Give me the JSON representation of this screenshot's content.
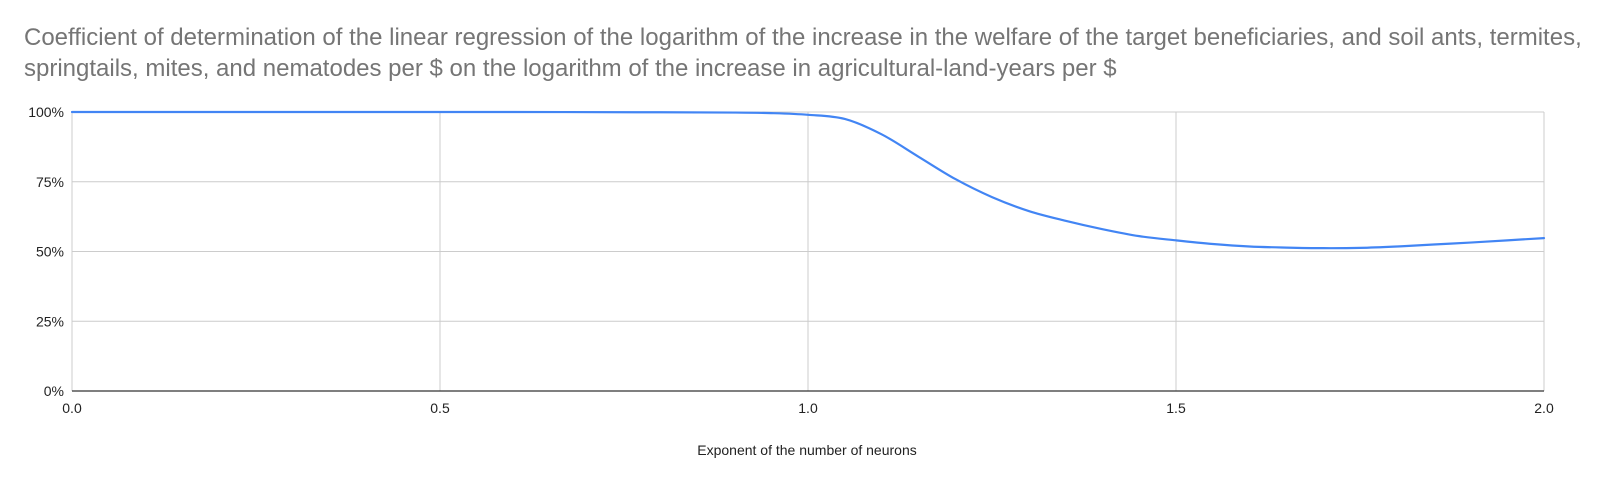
{
  "chart_data": {
    "type": "line",
    "title": "Coefficient of determination of the linear regression of the logarithm of the increase in the welfare of the target beneficiaries, and soil ants, termites, springtails, mites, and nematodes per $ on the logarithm of the increase in agricultural-land-years per $",
    "xlabel": "Exponent of the number of neurons",
    "ylabel": "",
    "xlim": [
      0,
      2
    ],
    "ylim": [
      0,
      100
    ],
    "x_ticks": [
      "0.0",
      "0.5",
      "1.0",
      "1.5",
      "2.0"
    ],
    "y_ticks": [
      "0%",
      "25%",
      "50%",
      "75%",
      "100%"
    ],
    "grid": true,
    "legend": "none",
    "series": [
      {
        "color": "#4285f4",
        "x": [
          0.0,
          0.2,
          0.4,
          0.6,
          0.8,
          0.9,
          0.95,
          1.0,
          1.05,
          1.1,
          1.15,
          1.2,
          1.25,
          1.3,
          1.35,
          1.4,
          1.45,
          1.5,
          1.55,
          1.6,
          1.65,
          1.7,
          1.75,
          1.8,
          1.85,
          1.9,
          1.95,
          2.0
        ],
        "y": [
          100,
          100,
          100,
          100,
          99.9,
          99.8,
          99.6,
          99,
          97.5,
          92,
          84,
          76,
          69.5,
          64.5,
          61,
          58,
          55.5,
          54,
          52.7,
          51.8,
          51.4,
          51.2,
          51.3,
          51.8,
          52.5,
          53.2,
          54,
          54.8
        ]
      }
    ]
  }
}
